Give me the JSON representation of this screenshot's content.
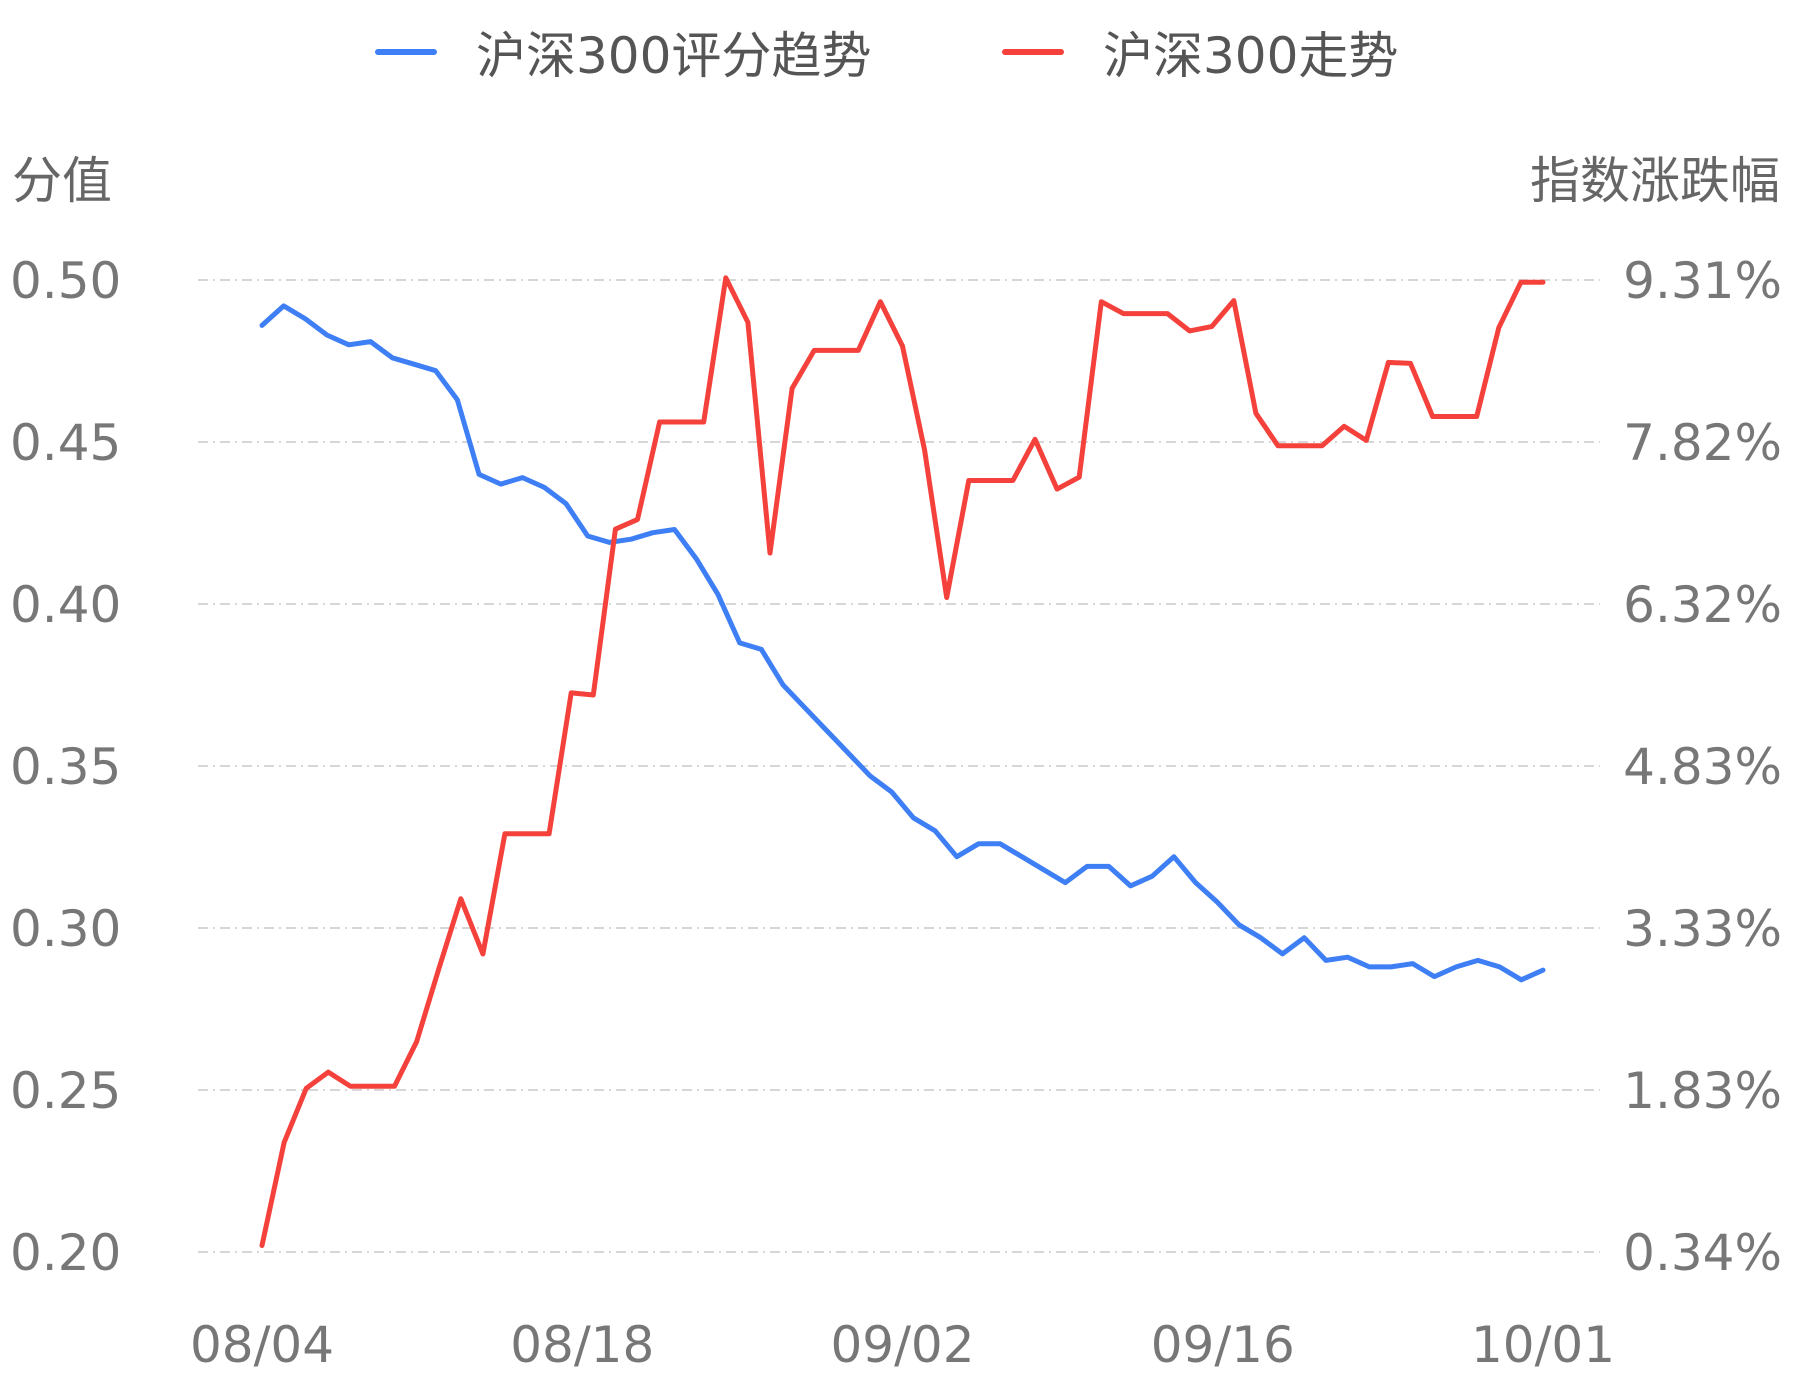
{
  "chart_data": {
    "type": "line",
    "legend_position": "top-center",
    "grid": true,
    "left_axis_title": "分值",
    "right_axis_title": "指数涨跌幅",
    "left_ticks": [
      "0.50",
      "0.45",
      "0.40",
      "0.35",
      "0.30",
      "0.25",
      "0.20"
    ],
    "right_ticks": [
      "9.31%",
      "7.82%",
      "6.32%",
      "4.83%",
      "3.33%",
      "1.83%",
      "0.34%"
    ],
    "ylim_left": [
      0.2,
      0.5
    ],
    "ylim_right": [
      0.34,
      9.31
    ],
    "x_ticks": [
      "08/04",
      "08/18",
      "09/02",
      "09/16",
      "10/01"
    ],
    "series": [
      {
        "name": "沪深300评分趋势",
        "color": "#3f7ff5",
        "axis": "left",
        "values": [
          0.486,
          0.492,
          0.488,
          0.483,
          0.48,
          0.481,
          0.476,
          0.474,
          0.472,
          0.463,
          0.44,
          0.437,
          0.439,
          0.436,
          0.431,
          0.421,
          0.419,
          0.42,
          0.422,
          0.423,
          0.414,
          0.403,
          0.388,
          0.386,
          0.375,
          0.368,
          0.361,
          0.354,
          0.347,
          0.342,
          0.334,
          0.33,
          0.322,
          0.326,
          0.326,
          0.322,
          0.318,
          0.314,
          0.319,
          0.319,
          0.313,
          0.316,
          0.322,
          0.314,
          0.308,
          0.301,
          0.297,
          0.292,
          0.297,
          0.29,
          0.291,
          0.288,
          0.288,
          0.289,
          0.285,
          0.288,
          0.29,
          0.288,
          0.284,
          0.287
        ]
      },
      {
        "name": "沪深300走势",
        "color": "#f5413b",
        "axis": "right",
        "values": [
          0.4,
          1.35,
          1.85,
          2.0,
          1.87,
          1.87,
          1.87,
          2.28,
          2.95,
          3.6,
          3.09,
          4.2,
          4.2,
          4.2,
          5.5,
          5.48,
          7.01,
          7.1,
          8.0,
          8.0,
          8.0,
          9.33,
          8.92,
          6.79,
          8.31,
          8.66,
          8.66,
          8.66,
          9.11,
          8.7,
          7.74,
          6.38,
          7.46,
          7.46,
          7.46,
          7.84,
          7.38,
          7.49,
          9.11,
          9.0,
          9.0,
          9.0,
          8.84,
          8.88,
          9.12,
          8.08,
          7.78,
          7.78,
          7.78,
          7.96,
          7.83,
          8.55,
          8.54,
          8.05,
          8.05,
          8.05,
          8.87,
          9.29,
          9.29
        ]
      }
    ]
  }
}
